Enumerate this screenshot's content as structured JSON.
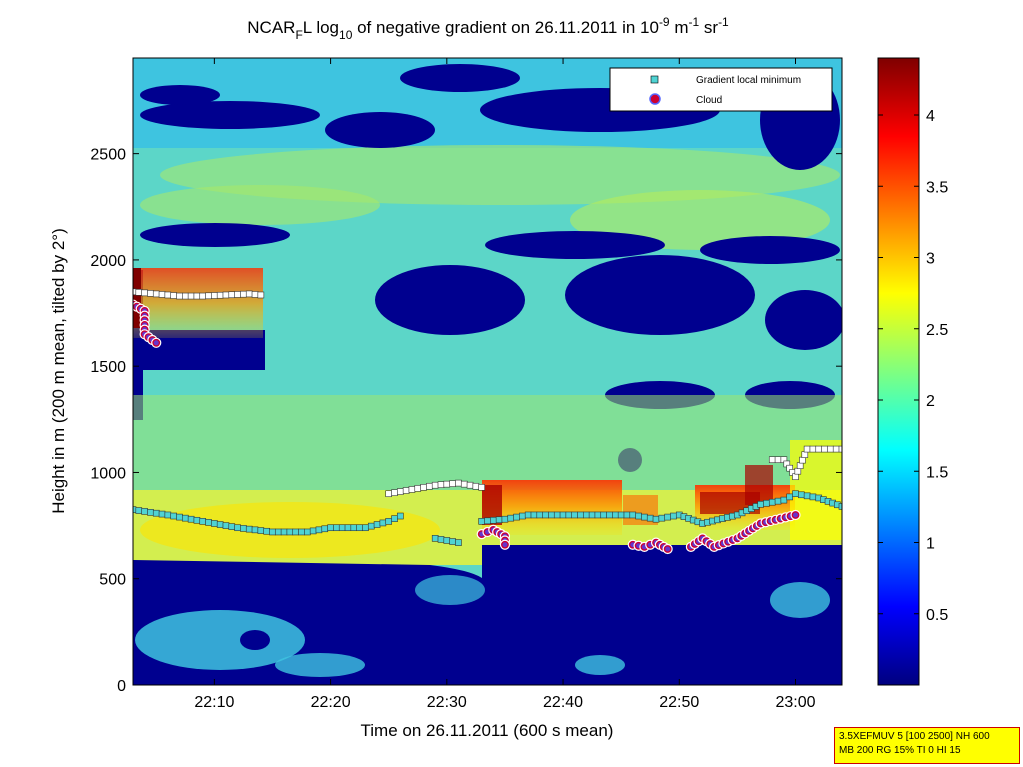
{
  "chart_data": {
    "type": "heatmap",
    "title": {
      "prefix": "NCAR",
      "prefix_sub": "F",
      "mid1": "L log",
      "mid1_sub": "10",
      "mid2": " of negative gradient on 26.11.2011 in 10",
      "exp1": "-9",
      "mid3": " m",
      "exp2": "-1",
      "mid4": " sr",
      "exp3": "-1"
    },
    "xlabel": "Time on 26.11.2011 (600 s mean)",
    "ylabel": "Height in m (200 m mean, tilted by 2°)",
    "xlim": [
      "22:03",
      "23:04"
    ],
    "ylim": [
      0,
      2950
    ],
    "x_ticks": [
      "22:10",
      "22:20",
      "22:30",
      "22:40",
      "22:50",
      "23:00"
    ],
    "y_ticks": [
      0,
      500,
      1000,
      1500,
      2000,
      2500
    ],
    "y_tick_labels": [
      "0",
      "500",
      "1000",
      "1500",
      "2000",
      "2500"
    ],
    "colorbar": {
      "range": [
        0,
        4.4
      ],
      "ticks": [
        0.5,
        1,
        1.5,
        2,
        2.5,
        3,
        3.5,
        4
      ],
      "tick_labels": [
        "0.5",
        "1",
        "1.5",
        "2",
        "2.5",
        "3",
        "3.5",
        "4"
      ],
      "colormap": "jet"
    },
    "legend": {
      "placement": "top-right",
      "entries": [
        {
          "label": "Gradient local minimum",
          "marker": "square",
          "color": "#4fd3d3"
        },
        {
          "label": "Cloud",
          "marker": "circle",
          "color": "#cc0033"
        }
      ]
    },
    "gradient_minimum_series": [
      {
        "color": "#ffffff",
        "points": [
          [
            "22:03",
            1850
          ],
          [
            "22:05",
            1840
          ],
          [
            "22:07",
            1830
          ],
          [
            "22:09",
            1830
          ],
          [
            "22:11",
            1835
          ],
          [
            "22:13",
            1840
          ],
          [
            "22:14",
            1835
          ]
        ]
      },
      {
        "color": "#4fd3d3",
        "points": [
          [
            "22:03",
            825
          ],
          [
            "22:06",
            800
          ],
          [
            "22:09",
            770
          ],
          [
            "22:12",
            740
          ],
          [
            "22:15",
            720
          ],
          [
            "22:18",
            720
          ],
          [
            "22:20",
            740
          ],
          [
            "22:23",
            740
          ],
          [
            "22:25",
            770
          ],
          [
            "22:26",
            795
          ]
        ]
      },
      {
        "color": "#ffffff",
        "points": [
          [
            "22:25",
            900
          ],
          [
            "22:27",
            920
          ],
          [
            "22:29",
            940
          ],
          [
            "22:31",
            950
          ],
          [
            "22:33",
            930
          ]
        ]
      },
      {
        "color": "#4fd3d3",
        "points": [
          [
            "22:29",
            690
          ],
          [
            "22:31",
            670
          ]
        ]
      },
      {
        "color": "#4fd3d3",
        "points": [
          [
            "22:33",
            770
          ],
          [
            "22:35",
            780
          ],
          [
            "22:37",
            800
          ],
          [
            "22:40",
            800
          ],
          [
            "22:43",
            800
          ],
          [
            "22:46",
            800
          ],
          [
            "22:48",
            780
          ],
          [
            "22:50",
            800
          ],
          [
            "22:52",
            760
          ],
          [
            "22:55",
            800
          ],
          [
            "22:57",
            850
          ],
          [
            "22:59",
            870
          ],
          [
            "23:00",
            900
          ],
          [
            "23:02",
            880
          ],
          [
            "23:04",
            840
          ]
        ]
      },
      {
        "color": "#ffffff",
        "points": [
          [
            "22:58",
            1060
          ],
          [
            "22:59",
            1060
          ],
          [
            "23:00",
            980
          ],
          [
            "23:01",
            1110
          ],
          [
            "23:03",
            1110
          ],
          [
            "23:04",
            1110
          ]
        ]
      }
    ],
    "cloud_series": [
      {
        "points": [
          [
            "22:03",
            1790
          ],
          [
            "22:04",
            1760
          ],
          [
            "22:04",
            1650
          ],
          [
            "22:05",
            1610
          ]
        ]
      },
      {
        "points": [
          [
            "22:33",
            710
          ],
          [
            "22:34",
            730
          ],
          [
            "22:35",
            700
          ],
          [
            "22:35",
            660
          ]
        ]
      },
      {
        "points": [
          [
            "22:46",
            660
          ],
          [
            "22:47",
            650
          ],
          [
            "22:48",
            670
          ],
          [
            "22:49",
            640
          ]
        ]
      },
      {
        "points": [
          [
            "22:51",
            650
          ],
          [
            "22:52",
            690
          ],
          [
            "22:53",
            650
          ],
          [
            "22:55",
            690
          ],
          [
            "22:57",
            760
          ],
          [
            "23:00",
            800
          ]
        ]
      }
    ]
  },
  "info_box": {
    "line1": "3.5XEFMUV 5 [100 2500] NH 600",
    "line2": "MB 200 RG 15% TI 0 HI 15"
  }
}
